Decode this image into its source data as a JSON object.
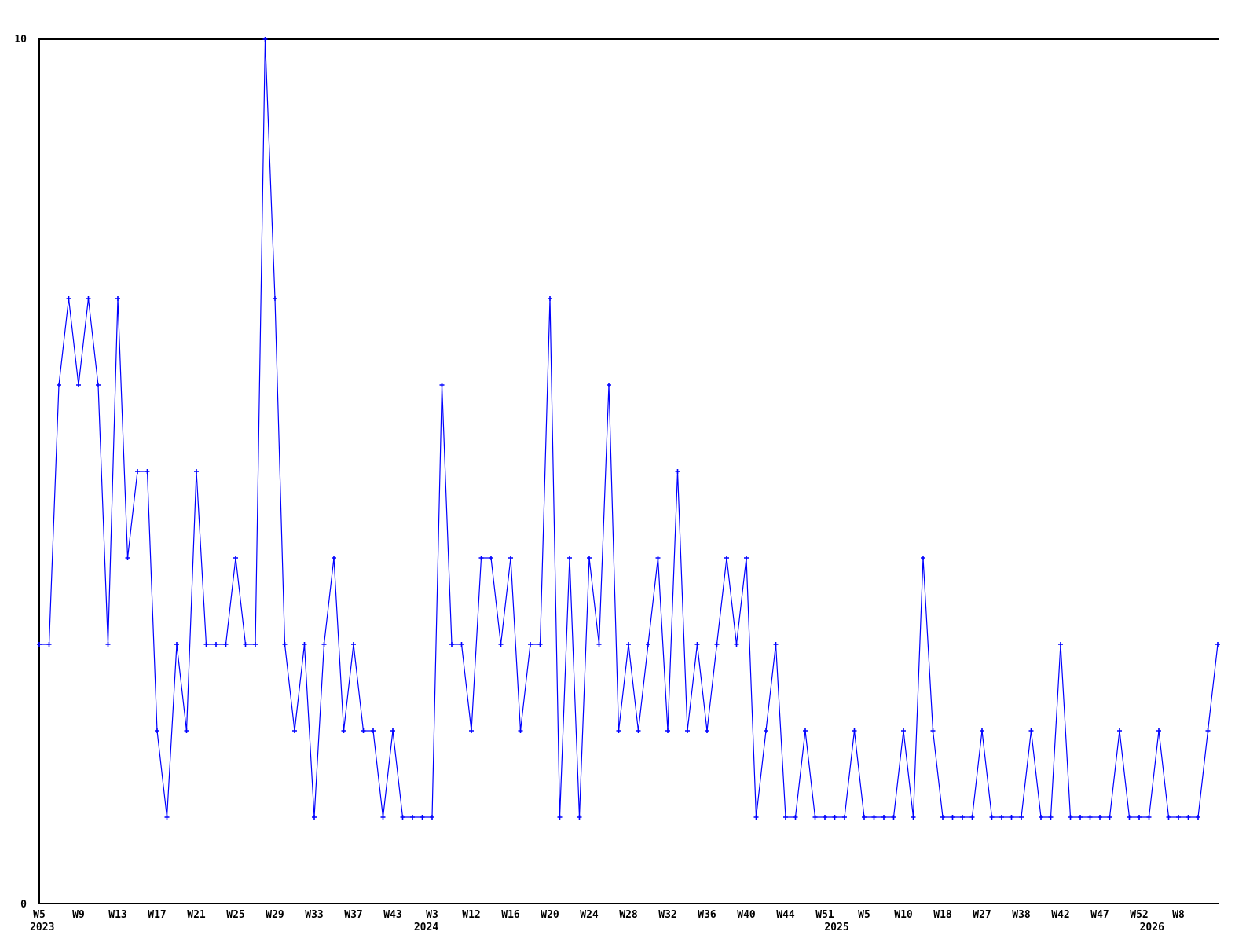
{
  "chart_data": {
    "type": "line",
    "title": "",
    "xlabel": "",
    "ylabel": "",
    "ylim": [
      0,
      10
    ],
    "y_tick_labels": [
      "0",
      "10"
    ],
    "grid": false,
    "legend": "none",
    "line_color": "#0000ff",
    "axis_color": "#000000",
    "background_color": "#ffffff",
    "marker": "plus",
    "tick_every_points": 4,
    "x_tick_labels": [
      "W5",
      "W9",
      "W13",
      "W17",
      "W21",
      "W25",
      "W29",
      "W33",
      "W37",
      "W43",
      "W3",
      "W12",
      "W16",
      "W20",
      "W24",
      "W28",
      "W32",
      "W36",
      "W40",
      "W44",
      "W51",
      "W5",
      "W10",
      "W18",
      "W27",
      "W38",
      "W42",
      "W47",
      "W52",
      "W8"
    ],
    "year_labels": [
      {
        "label": "2023",
        "at_point": 0.3
      },
      {
        "label": "2024",
        "at_point": 39.4
      },
      {
        "label": "2025",
        "at_point": 81.2
      },
      {
        "label": "2026",
        "at_point": 113.3
      }
    ],
    "values": [
      3,
      3,
      6,
      7,
      6,
      7,
      6,
      3,
      7,
      4,
      5,
      5,
      2,
      1,
      3,
      2,
      5,
      3,
      3,
      3,
      4,
      3,
      3,
      10,
      7,
      3,
      2,
      3,
      1,
      3,
      4,
      2,
      3,
      2,
      2,
      1,
      2,
      1,
      1,
      1,
      1,
      6,
      3,
      3,
      2,
      4,
      4,
      3,
      4,
      2,
      3,
      3,
      7,
      1,
      4,
      1,
      4,
      3,
      6,
      2,
      3,
      2,
      3,
      4,
      2,
      5,
      2,
      3,
      2,
      3,
      4,
      3,
      4,
      1,
      2,
      3,
      1,
      1,
      2,
      1,
      1,
      1,
      1,
      2,
      1,
      1,
      1,
      1,
      2,
      1,
      4,
      2,
      1,
      1,
      1,
      1,
      2,
      1,
      1,
      1,
      1,
      2,
      1,
      1,
      3,
      1,
      1,
      1,
      1,
      1,
      2,
      1,
      1,
      1,
      2,
      1,
      1,
      1,
      1,
      2,
      3
    ]
  }
}
